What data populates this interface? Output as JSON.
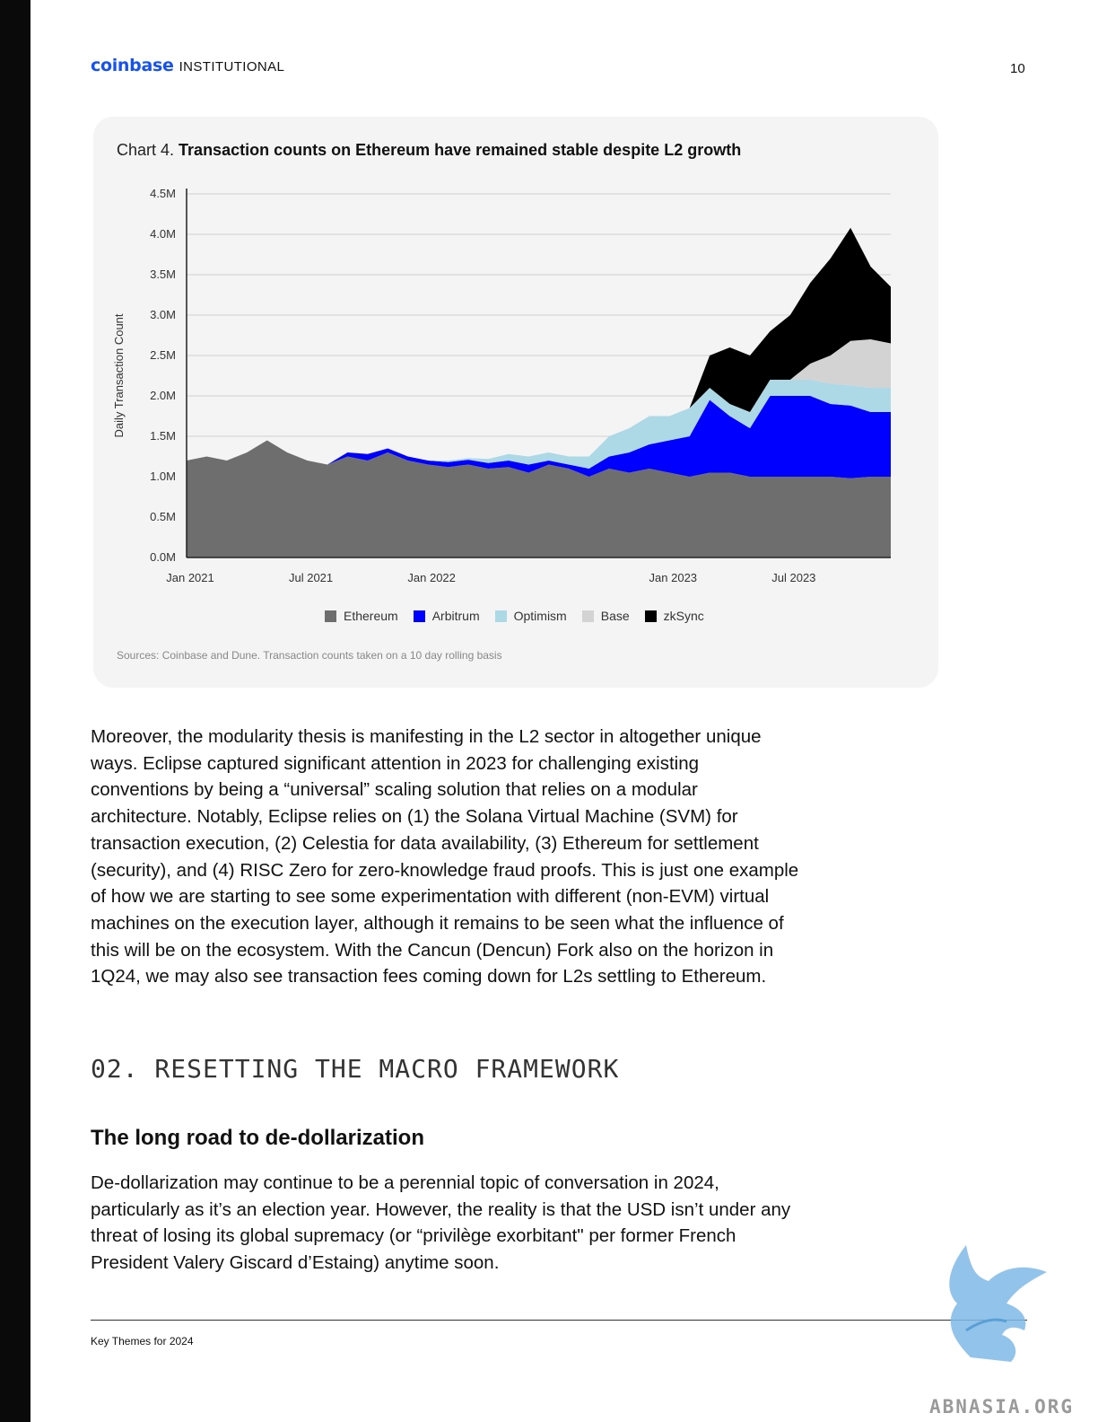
{
  "header": {
    "brand_logo": "coinbase",
    "brand_sub": "INSTITUTIONAL",
    "page_number": "10"
  },
  "chart": {
    "title_prefix": "Chart 4.",
    "title_bold": "Transaction counts on Ethereum have remained stable despite L2 growth",
    "source": "Sources: Coinbase and Dune. Transaction counts taken on a 10 day rolling basis"
  },
  "chart_data": {
    "type": "area",
    "stacked": true,
    "ylabel": "Daily Transaction Count",
    "ylim": [
      0,
      4.5
    ],
    "y_ticks": [
      "0.0M",
      "0.5M",
      "1.0M",
      "1.5M",
      "2.0M",
      "2.5M",
      "3.0M",
      "3.5M",
      "4.0M",
      "4.5M"
    ],
    "x_ticks": [
      "Jan 2021",
      "Jul 2021",
      "Jan 2022",
      "Jan 2023",
      "Jul 2023"
    ],
    "x": [
      "2021-01",
      "2021-02",
      "2021-03",
      "2021-04",
      "2021-05",
      "2021-06",
      "2021-07",
      "2021-08",
      "2021-09",
      "2021-10",
      "2021-11",
      "2021-12",
      "2022-01",
      "2022-02",
      "2022-03",
      "2022-04",
      "2022-05",
      "2022-06",
      "2022-07",
      "2022-08",
      "2022-09",
      "2022-10",
      "2022-11",
      "2022-12",
      "2023-01",
      "2023-02",
      "2023-03",
      "2023-04",
      "2023-05",
      "2023-06",
      "2023-07",
      "2023-08",
      "2023-09",
      "2023-10",
      "2023-11",
      "2023-12"
    ],
    "grid": true,
    "legend_position": "bottom",
    "series": [
      {
        "name": "Ethereum",
        "color": "#6e6e6e",
        "values": [
          1.2,
          1.25,
          1.2,
          1.3,
          1.45,
          1.3,
          1.2,
          1.15,
          1.25,
          1.2,
          1.3,
          1.2,
          1.15,
          1.12,
          1.15,
          1.1,
          1.12,
          1.05,
          1.15,
          1.1,
          1.0,
          1.1,
          1.05,
          1.1,
          1.05,
          1.0,
          1.05,
          1.05,
          1.0,
          1.0,
          1.0,
          1.0,
          1.0,
          0.98,
          1.0,
          1.0
        ]
      },
      {
        "name": "Arbitrum",
        "color": "#0000ff",
        "values": [
          0,
          0,
          0,
          0,
          0,
          0,
          0,
          0,
          0.05,
          0.08,
          0.05,
          0.05,
          0.05,
          0.06,
          0.06,
          0.07,
          0.08,
          0.1,
          0.05,
          0.05,
          0.1,
          0.15,
          0.25,
          0.3,
          0.4,
          0.5,
          0.9,
          0.7,
          0.6,
          1.0,
          1.0,
          1.0,
          0.9,
          0.9,
          0.8,
          0.8
        ]
      },
      {
        "name": "Optimism",
        "color": "#add8e6",
        "values": [
          0,
          0,
          0,
          0,
          0,
          0,
          0,
          0,
          0,
          0,
          0,
          0,
          0,
          0.02,
          0.02,
          0.05,
          0.08,
          0.1,
          0.1,
          0.1,
          0.15,
          0.25,
          0.3,
          0.35,
          0.3,
          0.35,
          0.15,
          0.15,
          0.2,
          0.2,
          0.2,
          0.2,
          0.25,
          0.25,
          0.3,
          0.3
        ]
      },
      {
        "name": "Base",
        "color": "#d3d3d3",
        "values": [
          0,
          0,
          0,
          0,
          0,
          0,
          0,
          0,
          0,
          0,
          0,
          0,
          0,
          0,
          0,
          0,
          0,
          0,
          0,
          0,
          0,
          0,
          0,
          0,
          0,
          0,
          0,
          0,
          0,
          0,
          0,
          0.2,
          0.35,
          0.55,
          0.6,
          0.55
        ]
      },
      {
        "name": "zkSync",
        "color": "#000000",
        "values": [
          0,
          0,
          0,
          0,
          0,
          0,
          0,
          0,
          0,
          0,
          0,
          0,
          0,
          0,
          0,
          0,
          0,
          0,
          0,
          0,
          0,
          0,
          0,
          0,
          0,
          0,
          0.4,
          0.7,
          0.7,
          0.6,
          0.8,
          1.0,
          1.2,
          1.4,
          0.9,
          0.7
        ]
      }
    ]
  },
  "body": {
    "para1": "Moreover, the modularity thesis is manifesting in the L2 sector in altogether unique ways. Eclipse captured significant attention in 2023 for challenging existing conventions by being a “universal” scaling solution that relies on a modular architecture. Notably, Eclipse relies on (1) the Solana Virtual Machine (SVM) for transaction execution, (2) Celestia for data availability, (3) Ethereum for settlement (security), and (4) RISC Zero for zero-knowledge fraud proofs. This is just one example of how we are starting to see some experimentation with different (non-EVM) virtual machines on the execution layer, although it remains to be seen what the influence of this will be on the ecosystem. With the Cancun (Dencun) Fork also on the horizon in 1Q24, we may also see transaction fees coming down for L2s settling to Ethereum.",
    "section_heading": "02. RESETTING THE MACRO FRAMEWORK",
    "sub_heading": "The long road to de-dollarization",
    "para2": "De-dollarization may continue to be a perennial topic of conversation in 2024, particularly as it’s an election year. However, the reality is that the USD isn’t under any threat of losing its global supremacy (or “privilège exorbitant\" per former French President Valery Giscard d’Estaing) anytime soon."
  },
  "footer": {
    "text": "Key Themes for 2024"
  },
  "watermark": {
    "text": "ABNASIA.ORG"
  }
}
